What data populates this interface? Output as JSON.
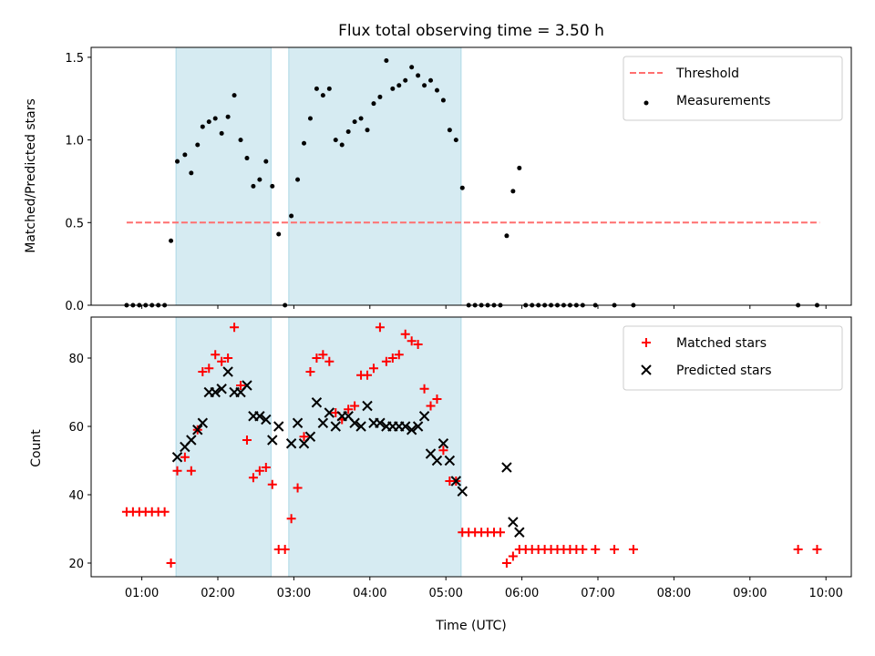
{
  "chart_data": [
    {
      "type": "scatter",
      "title": "Flux total observing time = 3.50 h",
      "xlabel": "",
      "ylabel": "Matched/Predicted stars",
      "ylim": [
        0,
        1.56
      ],
      "xlim": [
        "00:20",
        "10:20"
      ],
      "yticks": [
        "0.0",
        "0.5",
        "1.0",
        "1.5"
      ],
      "shaded_intervals": [
        [
          "01:27",
          "02:42"
        ],
        [
          "02:56",
          "05:12"
        ]
      ],
      "legend_position": "top-right",
      "series": [
        {
          "name": "Threshold",
          "style": "dashed-line",
          "color": "#ff6f6f",
          "x": [
            "00:48",
            "09:55"
          ],
          "y": [
            0.5,
            0.5
          ]
        },
        {
          "name": "Measurements",
          "style": "dot",
          "color": "#000000",
          "x": [
            "00:48",
            "00:53",
            "00:58",
            "01:03",
            "01:08",
            "01:13",
            "01:18",
            "01:23",
            "01:28",
            "01:34",
            "01:39",
            "01:44",
            "01:48",
            "01:53",
            "01:58",
            "02:03",
            "02:08",
            "02:13",
            "02:18",
            "02:23",
            "02:28",
            "02:33",
            "02:38",
            "02:43",
            "02:48",
            "02:53",
            "02:58",
            "03:03",
            "03:08",
            "03:13",
            "03:18",
            "03:23",
            "03:28",
            "03:33",
            "03:38",
            "03:43",
            "03:48",
            "03:53",
            "03:58",
            "04:03",
            "04:08",
            "04:13",
            "04:18",
            "04:23",
            "04:28",
            "04:33",
            "04:38",
            "04:43",
            "04:48",
            "04:53",
            "04:58",
            "05:03",
            "05:08",
            "05:13",
            "05:18",
            "05:23",
            "05:28",
            "05:33",
            "05:38",
            "05:43",
            "05:48",
            "05:53",
            "05:58",
            "06:03",
            "06:08",
            "06:13",
            "06:18",
            "06:23",
            "06:28",
            "06:33",
            "06:38",
            "06:43",
            "06:48",
            "06:58",
            "07:13",
            "07:28",
            "09:38",
            "09:53"
          ],
          "y": [
            0,
            0,
            0,
            0,
            0,
            0,
            0,
            0.39,
            0.87,
            0.91,
            0.8,
            0.97,
            1.08,
            1.11,
            1.13,
            1.04,
            1.14,
            1.27,
            1.0,
            0.89,
            0.72,
            0.76,
            0.87,
            0.72,
            0.43,
            0,
            0.54,
            0.76,
            0.98,
            1.13,
            1.31,
            1.27,
            1.31,
            1.0,
            0.97,
            1.05,
            1.11,
            1.13,
            1.06,
            1.22,
            1.26,
            1.48,
            1.31,
            1.33,
            1.36,
            1.44,
            1.39,
            1.33,
            1.36,
            1.3,
            1.24,
            1.06,
            1.0,
            0.71,
            0,
            0,
            0,
            0,
            0,
            0,
            0.42,
            0.69,
            0.83,
            0,
            0,
            0,
            0,
            0,
            0,
            0,
            0,
            0,
            0,
            0,
            0,
            0,
            0,
            0
          ]
        }
      ]
    },
    {
      "type": "scatter",
      "title": "",
      "xlabel": "Time (UTC)",
      "ylabel": "Count",
      "ylim": [
        16,
        92
      ],
      "xlim": [
        "00:20",
        "10:20"
      ],
      "yticks": [
        "20",
        "40",
        "60",
        "80"
      ],
      "xticks": [
        "01:00",
        "02:00",
        "03:00",
        "04:00",
        "05:00",
        "06:00",
        "07:00",
        "08:00",
        "09:00",
        "10:00"
      ],
      "shaded_intervals": [
        [
          "01:27",
          "02:42"
        ],
        [
          "02:56",
          "05:12"
        ]
      ],
      "legend_position": "top-right",
      "series": [
        {
          "name": "Matched stars",
          "style": "plus",
          "color": "#ff0000",
          "x": [
            "00:48",
            "00:53",
            "00:58",
            "01:03",
            "01:08",
            "01:13",
            "01:18",
            "01:23",
            "01:28",
            "01:34",
            "01:39",
            "01:44",
            "01:48",
            "01:53",
            "01:58",
            "02:03",
            "02:08",
            "02:13",
            "02:18",
            "02:23",
            "02:28",
            "02:33",
            "02:38",
            "02:43",
            "02:48",
            "02:53",
            "02:58",
            "03:03",
            "03:08",
            "03:13",
            "03:18",
            "03:23",
            "03:28",
            "03:33",
            "03:38",
            "03:43",
            "03:48",
            "03:53",
            "03:58",
            "04:03",
            "04:08",
            "04:13",
            "04:18",
            "04:23",
            "04:28",
            "04:33",
            "04:38",
            "04:43",
            "04:48",
            "04:53",
            "04:58",
            "05:03",
            "05:08",
            "05:13",
            "05:18",
            "05:23",
            "05:28",
            "05:33",
            "05:38",
            "05:43",
            "05:48",
            "05:53",
            "05:58",
            "06:03",
            "06:08",
            "06:13",
            "06:18",
            "06:23",
            "06:28",
            "06:33",
            "06:38",
            "06:43",
            "06:48",
            "06:58",
            "07:13",
            "07:28",
            "09:38",
            "09:53"
          ],
          "y": [
            35,
            35,
            35,
            35,
            35,
            35,
            35,
            20,
            47,
            51,
            47,
            59,
            76,
            77,
            81,
            79,
            80,
            89,
            72,
            56,
            45,
            47,
            48,
            43,
            24,
            24,
            33,
            42,
            57,
            76,
            80,
            81,
            79,
            64,
            62,
            65,
            66,
            75,
            75,
            77,
            89,
            79,
            80,
            81,
            87,
            85,
            84,
            71,
            66,
            68,
            53,
            44,
            44,
            29,
            29,
            29,
            29,
            29,
            29,
            29,
            20,
            22,
            24,
            24,
            24,
            24,
            24,
            24,
            24,
            24,
            24,
            24,
            24,
            24,
            24,
            24,
            24,
            24
          ]
        },
        {
          "name": "Predicted stars",
          "style": "x",
          "color": "#000000",
          "x": [
            "01:28",
            "01:34",
            "01:39",
            "01:44",
            "01:48",
            "01:53",
            "01:58",
            "02:03",
            "02:08",
            "02:13",
            "02:18",
            "02:23",
            "02:28",
            "02:33",
            "02:38",
            "02:43",
            "02:48",
            "02:58",
            "03:03",
            "03:08",
            "03:13",
            "03:18",
            "03:23",
            "03:28",
            "03:33",
            "03:38",
            "03:43",
            "03:48",
            "03:53",
            "03:58",
            "04:03",
            "04:08",
            "04:13",
            "04:18",
            "04:23",
            "04:28",
            "04:33",
            "04:38",
            "04:43",
            "04:48",
            "04:53",
            "04:58",
            "05:03",
            "05:08",
            "05:13",
            "05:48",
            "05:53",
            "05:58"
          ],
          "y": [
            51,
            54,
            56,
            59,
            61,
            70,
            70,
            71,
            76,
            70,
            70,
            72,
            63,
            63,
            62,
            56,
            60,
            55,
            61,
            55,
            57,
            67,
            61,
            64,
            60,
            63,
            63,
            61,
            60,
            66,
            61,
            61,
            60,
            60,
            60,
            60,
            59,
            60,
            63,
            52,
            50,
            55,
            50,
            44,
            41,
            48,
            32,
            29
          ]
        }
      ]
    }
  ]
}
